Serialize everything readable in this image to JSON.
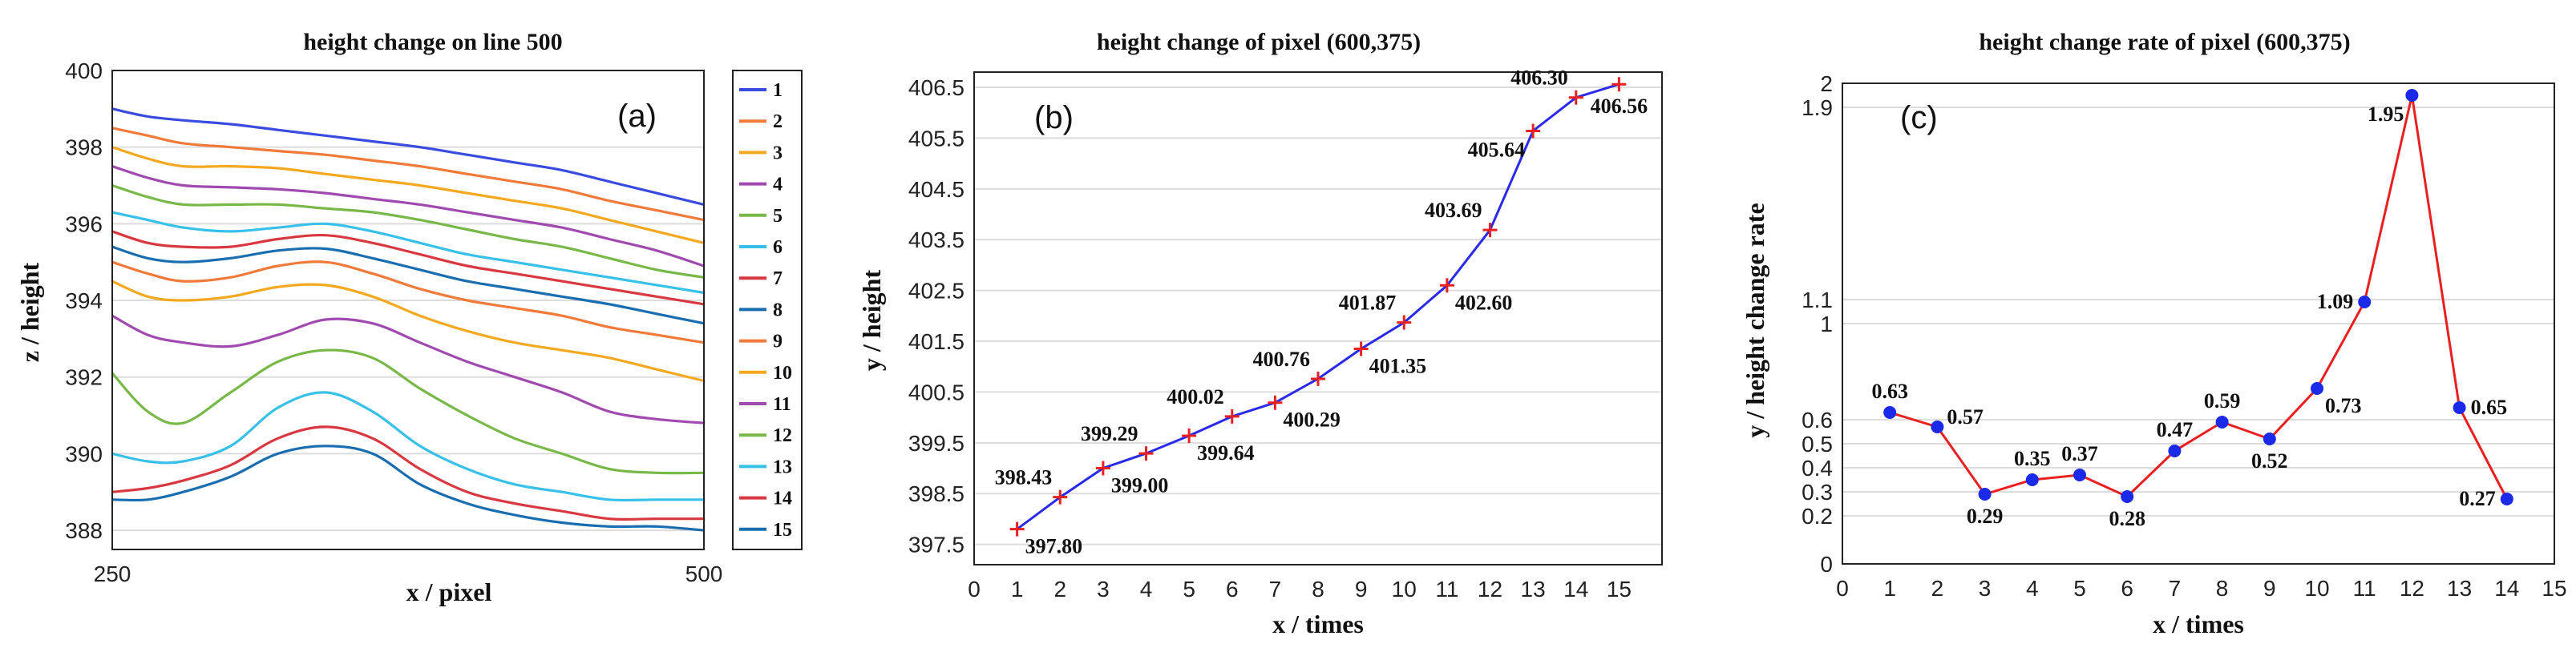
{
  "chart_data": [
    {
      "type": "line",
      "panel_label": "(a)",
      "title": "height change on line 500",
      "xlabel": "x / pixel",
      "ylabel": "z / height",
      "xlim": [
        250,
        500
      ],
      "ylim": [
        387.5,
        400
      ],
      "x_ticks": [
        {
          "v": 250,
          "t": "250"
        },
        {
          "v": 500,
          "t": "500"
        }
      ],
      "y_ticks": [
        {
          "v": 388,
          "t": "388"
        },
        {
          "v": 390,
          "t": "390"
        },
        {
          "v": 392,
          "t": "392"
        },
        {
          "v": 394,
          "t": "394"
        },
        {
          "v": 396,
          "t": "396"
        },
        {
          "v": 398,
          "t": "398"
        },
        {
          "v": 400,
          "t": "400"
        }
      ],
      "x": [
        250,
        265,
        280,
        300,
        320,
        340,
        360,
        380,
        400,
        420,
        440,
        460,
        480,
        500
      ],
      "series": [
        {
          "name": "1",
          "color": "#3a4be0",
          "values": [
            399.0,
            398.8,
            398.7,
            398.6,
            398.45,
            398.3,
            398.15,
            398.0,
            397.8,
            397.6,
            397.4,
            397.1,
            396.8,
            396.5
          ]
        },
        {
          "name": "2",
          "color": "#f07a3a",
          "values": [
            398.5,
            398.3,
            398.1,
            398.0,
            397.9,
            397.8,
            397.65,
            397.5,
            397.3,
            397.1,
            396.9,
            396.6,
            396.35,
            396.1
          ]
        },
        {
          "name": "3",
          "color": "#f4a820",
          "values": [
            398.0,
            397.7,
            397.5,
            397.5,
            397.45,
            397.3,
            397.15,
            397.0,
            396.8,
            396.6,
            396.4,
            396.1,
            395.8,
            395.5
          ]
        },
        {
          "name": "4",
          "color": "#a04ab0",
          "values": [
            397.5,
            397.2,
            397.0,
            396.95,
            396.9,
            396.8,
            396.65,
            396.5,
            396.3,
            396.1,
            395.9,
            395.6,
            395.3,
            394.9
          ]
        },
        {
          "name": "5",
          "color": "#78b848",
          "values": [
            397.0,
            396.7,
            396.5,
            396.5,
            396.5,
            396.4,
            396.3,
            396.1,
            395.85,
            395.6,
            395.4,
            395.1,
            394.8,
            394.6
          ]
        },
        {
          "name": "6",
          "color": "#38c0e8",
          "values": [
            396.3,
            396.1,
            395.9,
            395.8,
            395.9,
            396.0,
            395.8,
            395.5,
            395.2,
            395.0,
            394.8,
            394.6,
            394.4,
            394.2
          ]
        },
        {
          "name": "7",
          "color": "#d83840",
          "values": [
            395.8,
            395.5,
            395.4,
            395.4,
            395.6,
            395.7,
            395.5,
            395.2,
            394.9,
            394.7,
            394.5,
            394.3,
            394.1,
            393.9
          ]
        },
        {
          "name": "8",
          "color": "#1a6eb0",
          "values": [
            395.4,
            395.1,
            395.0,
            395.1,
            395.3,
            395.35,
            395.1,
            394.8,
            394.5,
            394.3,
            394.1,
            393.9,
            393.65,
            393.4
          ]
        },
        {
          "name": "9",
          "color": "#f07a3a",
          "values": [
            395.0,
            394.7,
            394.5,
            394.6,
            394.9,
            395.0,
            394.7,
            394.3,
            394.0,
            393.8,
            393.6,
            393.3,
            393.1,
            392.9
          ]
        },
        {
          "name": "10",
          "color": "#f4a820",
          "values": [
            394.5,
            394.1,
            394.0,
            394.1,
            394.35,
            394.4,
            394.1,
            393.6,
            393.2,
            392.9,
            392.7,
            392.5,
            392.2,
            391.9
          ]
        },
        {
          "name": "11",
          "color": "#a04ab0",
          "values": [
            393.6,
            393.1,
            392.9,
            392.8,
            393.1,
            393.5,
            393.4,
            392.9,
            392.4,
            392.0,
            391.6,
            391.1,
            390.9,
            390.8
          ]
        },
        {
          "name": "12",
          "color": "#78b848",
          "values": [
            392.1,
            391.1,
            390.8,
            391.6,
            392.4,
            392.7,
            392.5,
            391.7,
            391.0,
            390.4,
            390.0,
            389.6,
            389.5,
            389.5
          ]
        },
        {
          "name": "13",
          "color": "#38c0e8",
          "values": [
            390.0,
            389.8,
            389.8,
            390.2,
            391.2,
            391.6,
            391.1,
            390.2,
            389.6,
            389.2,
            389.0,
            388.8,
            388.8,
            388.8
          ]
        },
        {
          "name": "14",
          "color": "#d83840",
          "values": [
            389.0,
            389.1,
            389.3,
            389.7,
            390.4,
            390.7,
            390.4,
            389.6,
            389.0,
            388.7,
            388.5,
            388.3,
            388.3,
            388.3
          ]
        },
        {
          "name": "15",
          "color": "#1a6eb0",
          "values": [
            388.8,
            388.8,
            389.0,
            389.4,
            390.0,
            390.2,
            390.0,
            389.2,
            388.7,
            388.4,
            388.2,
            388.1,
            388.1,
            388.0
          ]
        }
      ]
    },
    {
      "type": "line",
      "panel_label": "(b)",
      "title": "height change of pixel (600,375)",
      "xlabel": "x / times",
      "ylabel": "y / height",
      "xlim": [
        0,
        16
      ],
      "ylim": [
        397.1,
        406.8
      ],
      "x_ticks": [
        0,
        1,
        2,
        3,
        4,
        5,
        6,
        7,
        8,
        9,
        10,
        11,
        12,
        13,
        14,
        15
      ],
      "y_ticks": [
        "397.5",
        "398.5",
        "399.5",
        "400.5",
        "401.5",
        "402.5",
        "403.5",
        "404.5",
        "405.5",
        "406.5"
      ],
      "line_color": "#2a2ae8",
      "marker_color": "#e82020",
      "x": [
        1,
        2,
        3,
        4,
        5,
        6,
        7,
        8,
        9,
        10,
        11,
        12,
        13,
        14,
        15
      ],
      "values": [
        397.8,
        398.43,
        399.0,
        399.29,
        399.64,
        400.02,
        400.29,
        400.76,
        401.35,
        401.87,
        402.6,
        403.69,
        405.64,
        406.3,
        406.56
      ],
      "labels": [
        {
          "i": 0,
          "text": "397.80",
          "pos": "below-right"
        },
        {
          "i": 1,
          "text": "398.43",
          "pos": "above-left"
        },
        {
          "i": 2,
          "text": "399.00",
          "pos": "below-right"
        },
        {
          "i": 3,
          "text": "399.29",
          "pos": "above-left"
        },
        {
          "i": 4,
          "text": "399.64",
          "pos": "below-right"
        },
        {
          "i": 5,
          "text": "400.02",
          "pos": "above-left"
        },
        {
          "i": 6,
          "text": "400.29",
          "pos": "below-right"
        },
        {
          "i": 7,
          "text": "400.76",
          "pos": "above-left"
        },
        {
          "i": 8,
          "text": "401.35",
          "pos": "below-right"
        },
        {
          "i": 9,
          "text": "401.87",
          "pos": "above-left"
        },
        {
          "i": 10,
          "text": "402.60",
          "pos": "below-right"
        },
        {
          "i": 11,
          "text": "403.69",
          "pos": "above-left"
        },
        {
          "i": 12,
          "text": "405.64",
          "pos": "below-left"
        },
        {
          "i": 13,
          "text": "406.30",
          "pos": "above-left"
        },
        {
          "i": 14,
          "text": "406.56",
          "pos": "below"
        }
      ]
    },
    {
      "type": "line",
      "panel_label": "(c)",
      "title": "height change rate of pixel (600,375)",
      "xlabel": "x / times",
      "ylabel": "y / height change rate",
      "xlim": [
        0,
        15
      ],
      "ylim": [
        0,
        2
      ],
      "x_ticks": [
        0,
        1,
        2,
        3,
        4,
        5,
        6,
        7,
        8,
        9,
        10,
        11,
        12,
        13,
        14,
        15
      ],
      "y_ticks": [
        {
          "v": 0,
          "t": "0"
        },
        {
          "v": 0.2,
          "t": "0.2"
        },
        {
          "v": 0.3,
          "t": "0.3"
        },
        {
          "v": 0.4,
          "t": "0.4"
        },
        {
          "v": 0.5,
          "t": "0.5"
        },
        {
          "v": 0.6,
          "t": "0.6"
        },
        {
          "v": 1,
          "t": "1"
        },
        {
          "v": 1.1,
          "t": "1.1"
        },
        {
          "v": 1.9,
          "t": "1.9"
        },
        {
          "v": 2,
          "t": "2"
        }
      ],
      "line_color": "#e82020",
      "marker_color": "#1a2ae8",
      "x": [
        1,
        2,
        3,
        4,
        5,
        6,
        7,
        8,
        9,
        10,
        11,
        12,
        13,
        14
      ],
      "values": [
        0.63,
        0.57,
        0.29,
        0.35,
        0.37,
        0.28,
        0.47,
        0.59,
        0.52,
        0.73,
        1.09,
        1.95,
        0.65,
        0.27
      ],
      "labels": [
        {
          "i": 0,
          "text": "0.63",
          "pos": "above"
        },
        {
          "i": 1,
          "text": "0.57",
          "pos": "above-right"
        },
        {
          "i": 2,
          "text": "0.29",
          "pos": "below"
        },
        {
          "i": 3,
          "text": "0.35",
          "pos": "above"
        },
        {
          "i": 4,
          "text": "0.37",
          "pos": "above"
        },
        {
          "i": 5,
          "text": "0.28",
          "pos": "below"
        },
        {
          "i": 6,
          "text": "0.47",
          "pos": "above"
        },
        {
          "i": 7,
          "text": "0.59",
          "pos": "above"
        },
        {
          "i": 8,
          "text": "0.52",
          "pos": "below"
        },
        {
          "i": 9,
          "text": "0.73",
          "pos": "below-right"
        },
        {
          "i": 10,
          "text": "1.09",
          "pos": "left"
        },
        {
          "i": 11,
          "text": "1.95",
          "pos": "below-left"
        },
        {
          "i": 12,
          "text": "0.65",
          "pos": "right"
        },
        {
          "i": 13,
          "text": "0.27",
          "pos": "left"
        }
      ]
    }
  ]
}
